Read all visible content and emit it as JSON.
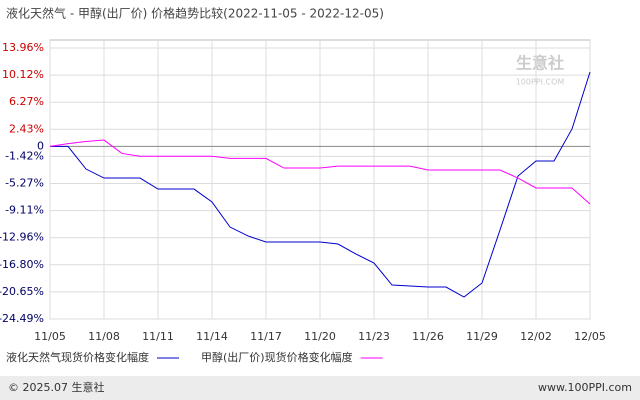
{
  "chart_data": {
    "type": "line",
    "title": "液化天然气 - 甲醇(出厂价) 价格趋势比较(2022-11-05 - 2022-12-05)",
    "categories": [
      "11/05",
      null,
      null,
      "11/08",
      null,
      null,
      "11/11",
      null,
      null,
      "11/14",
      null,
      null,
      "11/17",
      null,
      null,
      "11/20",
      null,
      null,
      "11/23",
      null,
      null,
      "11/26",
      null,
      null,
      "11/29",
      null,
      null,
      "12/02",
      null,
      null,
      "12/05"
    ],
    "series": [
      {
        "name": "液化天然气现货价格变化幅度",
        "color": "#0000cc",
        "values": [
          0,
          0,
          -3.21,
          -4.49,
          -4.49,
          -4.49,
          -6.05,
          -6.05,
          -6.05,
          -7.89,
          -11.44,
          -12.71,
          -13.57,
          -13.57,
          -13.57,
          -13.57,
          -13.85,
          -15.27,
          -16.55,
          -19.67,
          -19.81,
          -19.95,
          -19.95,
          -21.37,
          -19.38,
          -11.86,
          -4.2,
          -2.07,
          -2.07,
          2.47,
          10.55
        ]
      },
      {
        "name": "甲醇(出厂价)现货价格变化幅度",
        "color": "#ff00ff",
        "values": [
          0,
          0.4,
          0.7,
          0.9,
          -1.0,
          -1.4,
          -1.4,
          -1.4,
          -1.4,
          -1.4,
          -1.7,
          -1.7,
          -1.7,
          -3.07,
          -3.07,
          -3.07,
          -2.8,
          -2.8,
          -2.8,
          -2.8,
          -2.8,
          -3.35,
          -3.35,
          -3.35,
          -3.35,
          -3.35,
          -4.49,
          -5.9,
          -5.9,
          -5.9,
          -8.17
        ]
      }
    ],
    "ylim": [
      -24.49,
      13.96
    ],
    "yticks": [
      {
        "value": 13.96,
        "label": "13.96%"
      },
      {
        "value": 10.12,
        "label": "10.12%"
      },
      {
        "value": 6.27,
        "label": "6.27%"
      },
      {
        "value": 2.43,
        "label": "2.43%"
      },
      0,
      {
        "value": -1.42,
        "label": "-1.42%"
      },
      {
        "value": -5.27,
        "label": "-5.27%"
      },
      {
        "value": -9.11,
        "label": "-9.11%"
      },
      {
        "value": -12.96,
        "label": "-12.96%"
      },
      {
        "value": -16.8,
        "label": "-16.80%"
      },
      {
        "value": -20.65,
        "label": "-20.65%"
      },
      {
        "value": -24.49,
        "label": "-24.49%"
      }
    ],
    "grid": true,
    "watermark": [
      "生意社",
      "100PPI.COM"
    ],
    "footer": [
      "© 2025.07 生意社",
      "www.100PPI.com"
    ]
  }
}
